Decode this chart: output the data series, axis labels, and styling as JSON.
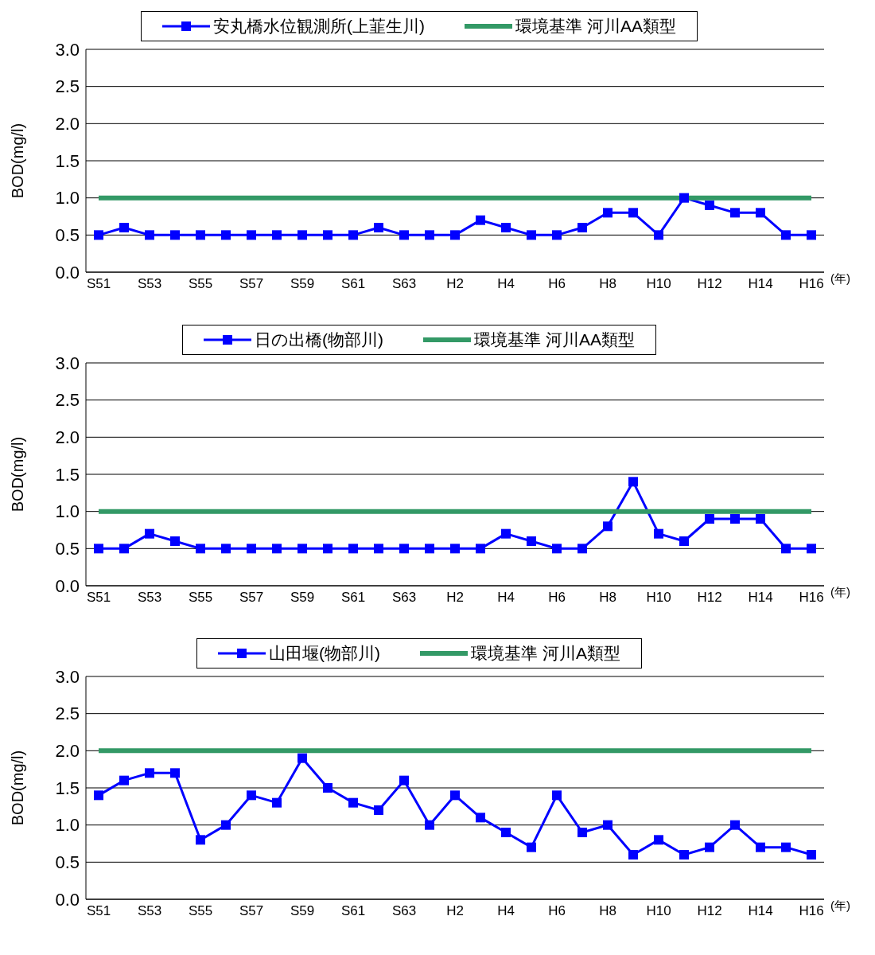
{
  "chart_data": [
    {
      "type": "line",
      "categories": [
        "S51",
        null,
        "S53",
        null,
        "S55",
        null,
        "S57",
        null,
        "S59",
        null,
        "S61",
        null,
        "S63",
        null,
        "H2",
        null,
        "H4",
        null,
        "H6",
        null,
        "H8",
        null,
        "H10",
        null,
        "H12",
        null,
        "H14",
        null,
        "H16"
      ],
      "xlabel": "(年)",
      "ylabel": "BOD(mg/l)",
      "ylim": [
        0,
        3
      ],
      "yticks": [
        {
          "value": 0,
          "label": "0.0"
        },
        {
          "value": 0.5,
          "label": "0.5"
        },
        {
          "value": 1,
          "label": "1.0"
        },
        {
          "value": 1.5,
          "label": "1.5"
        },
        {
          "value": 2,
          "label": "2.0"
        },
        {
          "value": 2.5,
          "label": "2.5"
        },
        {
          "value": 3,
          "label": "3.0"
        }
      ],
      "grid": "y",
      "legend": "top",
      "series": [
        {
          "name": "安丸橋水位観測所(上韮生川)",
          "color": "#0000ff",
          "marker": "square",
          "values": [
            0.5,
            0.6,
            0.5,
            0.5,
            0.5,
            0.5,
            0.5,
            0.5,
            0.5,
            0.5,
            0.5,
            0.6,
            0.5,
            0.5,
            0.5,
            0.7,
            0.6,
            0.5,
            0.5,
            0.6,
            0.8,
            0.8,
            0.5,
            1.0,
            0.9,
            0.8,
            0.8,
            0.5,
            0.5
          ]
        },
        {
          "name": "環境基準 河川AA類型",
          "color": "#339966",
          "marker": "none",
          "values": [
            1,
            1,
            1,
            1,
            1,
            1,
            1,
            1,
            1,
            1,
            1,
            1,
            1,
            1,
            1,
            1,
            1,
            1,
            1,
            1,
            1,
            1,
            1,
            1,
            1,
            1,
            1,
            1,
            1
          ]
        }
      ]
    },
    {
      "type": "line",
      "categories": [
        "S51",
        null,
        "S53",
        null,
        "S55",
        null,
        "S57",
        null,
        "S59",
        null,
        "S61",
        null,
        "S63",
        null,
        "H2",
        null,
        "H4",
        null,
        "H6",
        null,
        "H8",
        null,
        "H10",
        null,
        "H12",
        null,
        "H14",
        null,
        "H16"
      ],
      "xlabel": "(年)",
      "ylabel": "BOD(mg/l)",
      "ylim": [
        0,
        3
      ],
      "yticks": [
        {
          "value": 0,
          "label": "0.0"
        },
        {
          "value": 0.5,
          "label": "0.5"
        },
        {
          "value": 1,
          "label": "1.0"
        },
        {
          "value": 1.5,
          "label": "1.5"
        },
        {
          "value": 2,
          "label": "2.0"
        },
        {
          "value": 2.5,
          "label": "2.5"
        },
        {
          "value": 3,
          "label": "3.0"
        }
      ],
      "grid": "y",
      "legend": "top",
      "series": [
        {
          "name": "日の出橋(物部川)",
          "color": "#0000ff",
          "marker": "square",
          "values": [
            0.5,
            0.5,
            0.7,
            0.6,
            0.5,
            0.5,
            0.5,
            0.5,
            0.5,
            0.5,
            0.5,
            0.5,
            0.5,
            0.5,
            0.5,
            0.5,
            0.7,
            0.6,
            0.5,
            0.5,
            0.8,
            1.4,
            0.7,
            0.6,
            0.9,
            0.9,
            0.9,
            0.5,
            0.5
          ]
        },
        {
          "name": "環境基準 河川AA類型",
          "color": "#339966",
          "marker": "none",
          "values": [
            1,
            1,
            1,
            1,
            1,
            1,
            1,
            1,
            1,
            1,
            1,
            1,
            1,
            1,
            1,
            1,
            1,
            1,
            1,
            1,
            1,
            1,
            1,
            1,
            1,
            1,
            1,
            1,
            1
          ]
        }
      ]
    },
    {
      "type": "line",
      "categories": [
        "S51",
        null,
        "S53",
        null,
        "S55",
        null,
        "S57",
        null,
        "S59",
        null,
        "S61",
        null,
        "S63",
        null,
        "H2",
        null,
        "H4",
        null,
        "H6",
        null,
        "H8",
        null,
        "H10",
        null,
        "H12",
        null,
        "H14",
        null,
        "H16"
      ],
      "xlabel": "(年)",
      "ylabel": "BOD(mg/l)",
      "ylim": [
        0,
        3
      ],
      "yticks": [
        {
          "value": 0,
          "label": "0.0"
        },
        {
          "value": 0.5,
          "label": "0.5"
        },
        {
          "value": 1,
          "label": "1.0"
        },
        {
          "value": 1.5,
          "label": "1.5"
        },
        {
          "value": 2,
          "label": "2.0"
        },
        {
          "value": 2.5,
          "label": "2.5"
        },
        {
          "value": 3,
          "label": "3.0"
        }
      ],
      "grid": "y",
      "legend": "top",
      "series": [
        {
          "name": "山田堰(物部川)",
          "color": "#0000ff",
          "marker": "square",
          "values": [
            1.4,
            1.6,
            1.7,
            1.7,
            0.8,
            1.0,
            1.4,
            1.3,
            1.9,
            1.5,
            1.3,
            1.2,
            1.6,
            1.0,
            1.4,
            1.1,
            0.9,
            0.7,
            1.4,
            0.9,
            1.0,
            0.6,
            0.8,
            0.6,
            0.7,
            1.0,
            0.7,
            0.7,
            0.6
          ]
        },
        {
          "name": "環境基準 河川A類型",
          "color": "#339966",
          "marker": "none",
          "values": [
            2,
            2,
            2,
            2,
            2,
            2,
            2,
            2,
            2,
            2,
            2,
            2,
            2,
            2,
            2,
            2,
            2,
            2,
            2,
            2,
            2,
            2,
            2,
            2,
            2,
            2,
            2,
            2,
            2
          ]
        }
      ]
    }
  ]
}
